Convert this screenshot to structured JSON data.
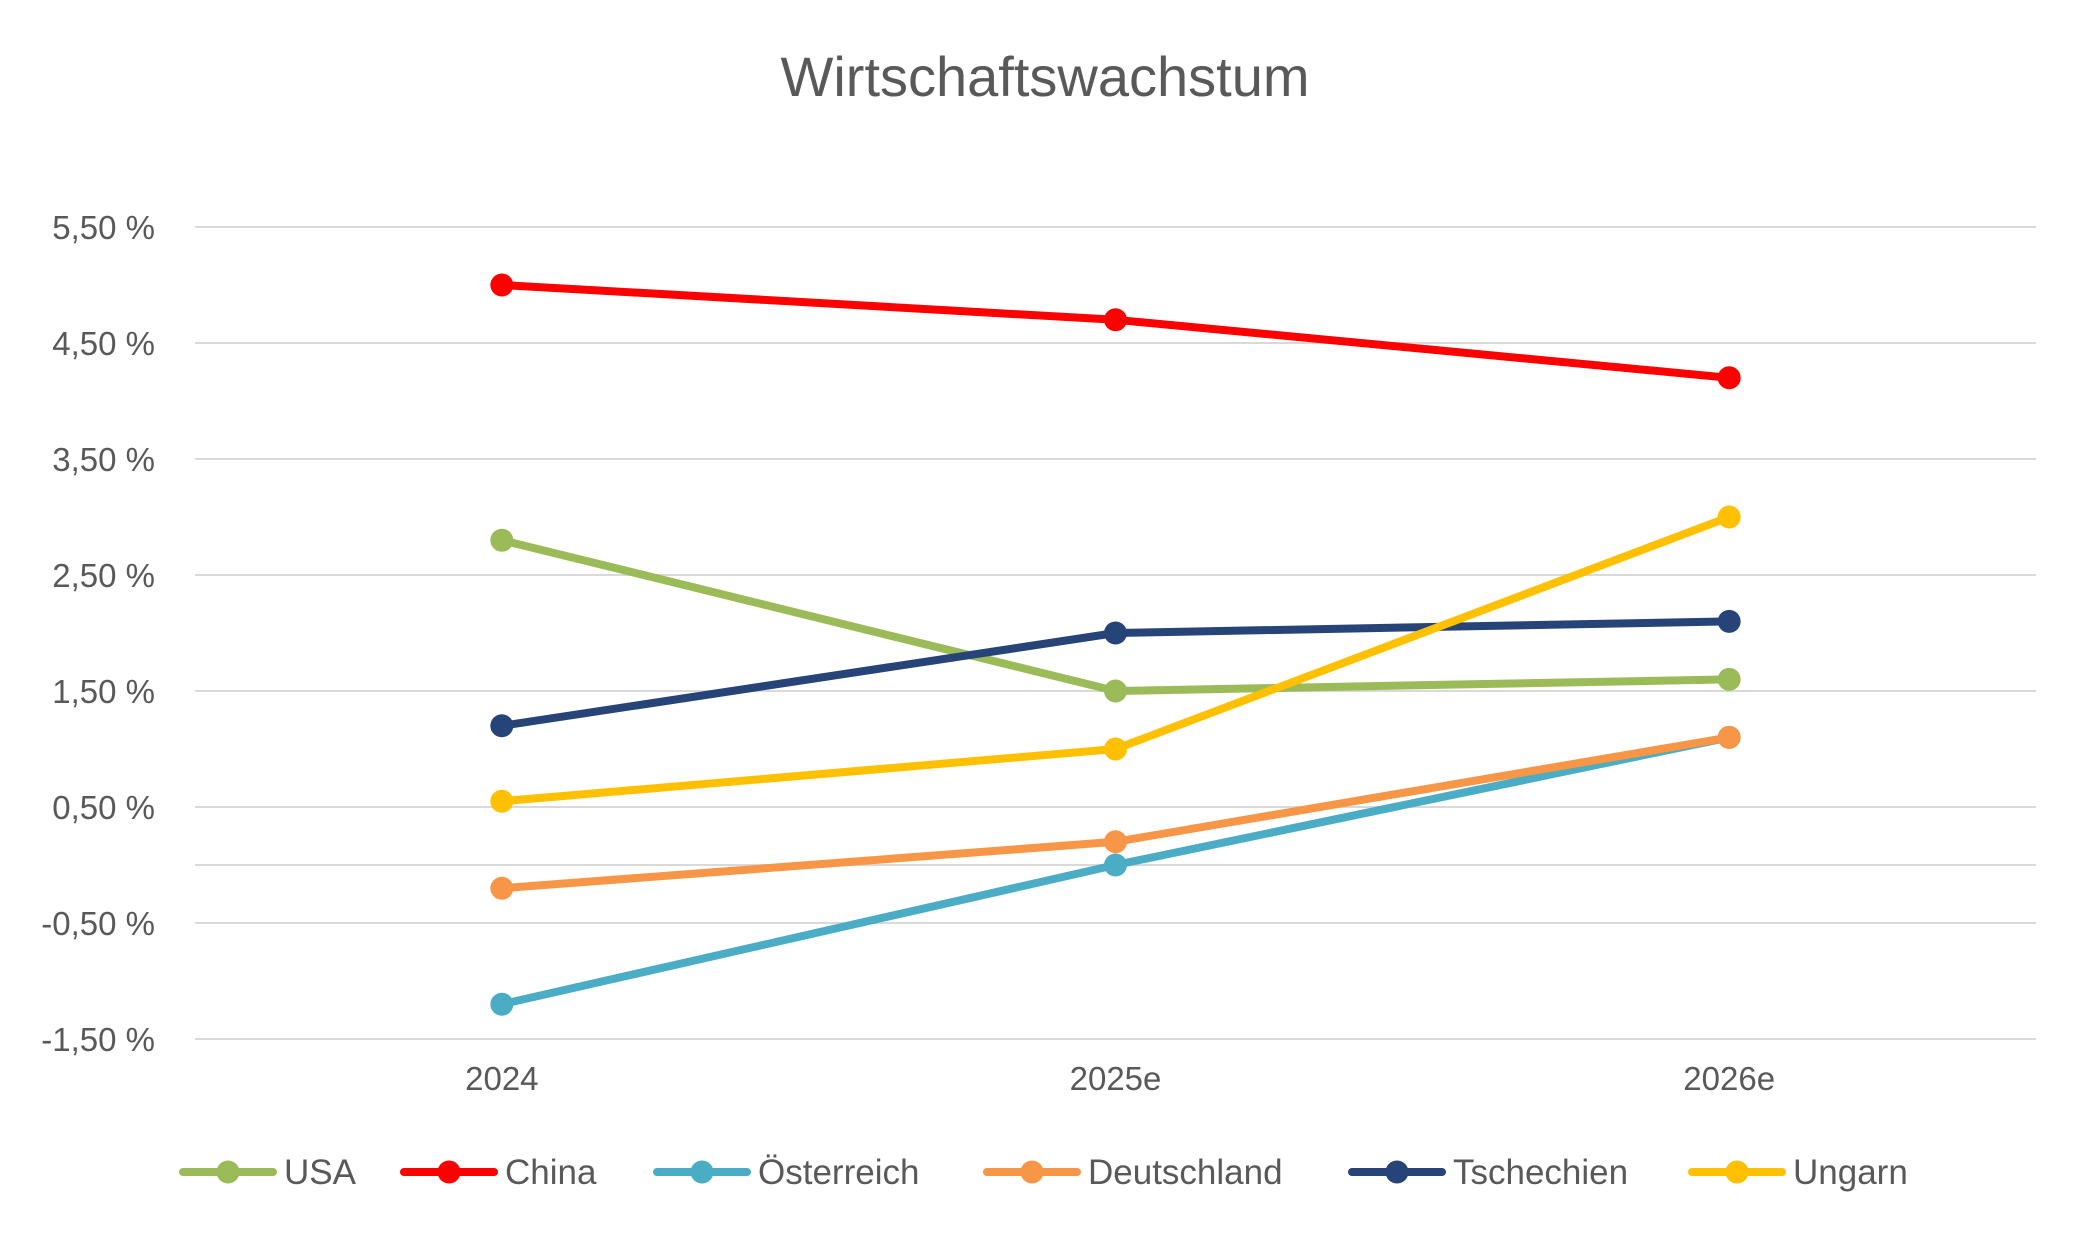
{
  "chart_data": {
    "type": "line",
    "title": "Wirtschaftswachstum",
    "xlabel": "",
    "ylabel": "",
    "categories": [
      "2024",
      "2025e",
      "2026e"
    ],
    "y_ticks": [
      -1.5,
      -0.5,
      0.5,
      1.5,
      2.5,
      3.5,
      4.5,
      5.5
    ],
    "y_tick_labels": [
      "-1,50 %",
      "-0,50 %",
      "0,50 %",
      "1,50 %",
      "2,50 %",
      "3,50 %",
      "4,50 %",
      "5,50 %"
    ],
    "ylim": [
      -1.5,
      5.5
    ],
    "zero_line": true,
    "grid": true,
    "legend_position": "bottom",
    "series": [
      {
        "name": "USA",
        "color": "#9BBB59",
        "values": [
          2.8,
          1.5,
          1.6
        ]
      },
      {
        "name": "China",
        "color": "#FF0000",
        "values": [
          5.0,
          4.7,
          4.2
        ]
      },
      {
        "name": "Österreich",
        "color": "#4BACC6",
        "values": [
          -1.2,
          0.0,
          1.1
        ]
      },
      {
        "name": "Deutschland",
        "color": "#F79646",
        "values": [
          -0.2,
          0.2,
          1.1
        ]
      },
      {
        "name": "Tschechien",
        "color": "#264478",
        "values": [
          1.2,
          2.0,
          2.1
        ]
      },
      {
        "name": "Ungarn",
        "color": "#FFC000",
        "values": [
          0.55,
          1.0,
          3.0
        ]
      }
    ]
  }
}
